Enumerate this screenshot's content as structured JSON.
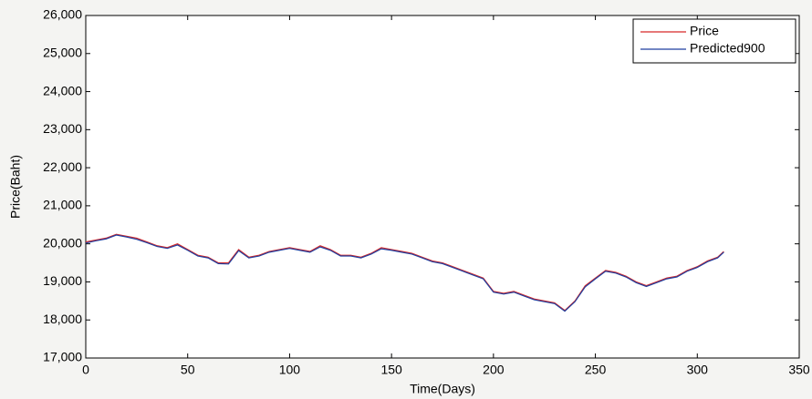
{
  "chart_data": {
    "type": "line",
    "xlabel": "Time(Days)",
    "ylabel": "Price(Baht)",
    "x": [
      0,
      5,
      10,
      15,
      20,
      25,
      30,
      35,
      40,
      45,
      50,
      55,
      60,
      65,
      70,
      75,
      80,
      85,
      90,
      95,
      100,
      105,
      110,
      115,
      120,
      125,
      130,
      135,
      140,
      145,
      150,
      155,
      160,
      165,
      170,
      175,
      180,
      185,
      190,
      195,
      200,
      205,
      210,
      215,
      220,
      225,
      230,
      235,
      240,
      245,
      250,
      255,
      260,
      265,
      270,
      275,
      280,
      285,
      290,
      295,
      300,
      305,
      310,
      313
    ],
    "series": [
      {
        "name": "Price",
        "color": "#d62728",
        "values": [
          20050,
          20100,
          20150,
          20250,
          20200,
          20150,
          20050,
          19950,
          19900,
          20000,
          19850,
          19700,
          19650,
          19500,
          19500,
          19850,
          19650,
          19700,
          19800,
          19850,
          19900,
          19850,
          19800,
          19950,
          19850,
          19700,
          19700,
          19650,
          19750,
          19900,
          19850,
          19800,
          19750,
          19650,
          19550,
          19500,
          19400,
          19300,
          19200,
          19100,
          18750,
          18700,
          18750,
          18650,
          18550,
          18500,
          18450,
          18250,
          18500,
          18900,
          19100,
          19300,
          19250,
          19150,
          19000,
          18900,
          19000,
          19100,
          19150,
          19300,
          19400,
          19550,
          19650,
          19800
        ]
      },
      {
        "name": "Predicted900",
        "color": "#1f3f9f",
        "values": [
          20020,
          20080,
          20130,
          20230,
          20180,
          20120,
          20030,
          19930,
          19880,
          19970,
          19830,
          19680,
          19630,
          19480,
          19470,
          19820,
          19630,
          19680,
          19780,
          19830,
          19880,
          19830,
          19780,
          19920,
          19830,
          19680,
          19680,
          19630,
          19730,
          19870,
          19830,
          19780,
          19730,
          19630,
          19530,
          19480,
          19380,
          19280,
          19180,
          19080,
          18730,
          18680,
          18730,
          18630,
          18530,
          18480,
          18430,
          18230,
          18480,
          18870,
          19080,
          19280,
          19230,
          19130,
          18980,
          18880,
          18980,
          19080,
          19130,
          19280,
          19380,
          19530,
          19630,
          19780
        ]
      }
    ],
    "xlim": [
      0,
      350
    ],
    "xticks": [
      0,
      50,
      100,
      150,
      200,
      250,
      300,
      350
    ],
    "ylim": [
      17000,
      26000
    ],
    "yticks": [
      {
        "value": 17000,
        "label": "17,000"
      },
      {
        "value": 18000,
        "label": "18,000"
      },
      {
        "value": 19000,
        "label": "19,000"
      },
      {
        "value": 20000,
        "label": "20,000"
      },
      {
        "value": 21000,
        "label": "21,000"
      },
      {
        "value": 22000,
        "label": "22,000"
      },
      {
        "value": 23000,
        "label": "23,000"
      },
      {
        "value": 24000,
        "label": "24,000"
      },
      {
        "value": 25000,
        "label": "25,000"
      },
      {
        "value": 26000,
        "label": "26,000"
      }
    ],
    "grid": false,
    "legend": "top-right"
  }
}
